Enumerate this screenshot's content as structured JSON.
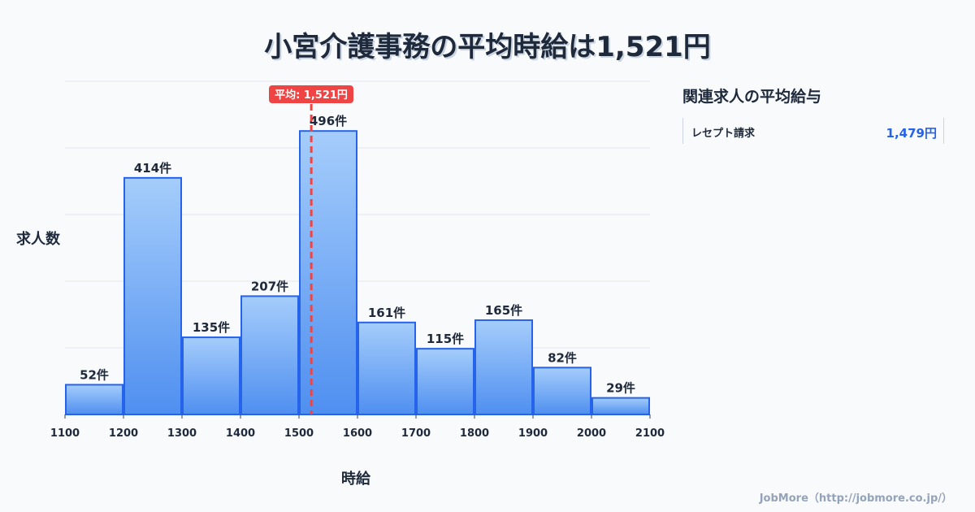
{
  "title": "小宮介護事務の平均時給は1,521円",
  "chart_data": {
    "type": "bar",
    "title": "小宮介護事務の平均時給は1,521円",
    "xlabel": "時給",
    "ylabel": "求人数",
    "bin_edges": [
      1100,
      1200,
      1300,
      1400,
      1500,
      1600,
      1700,
      1800,
      1900,
      2000,
      2100
    ],
    "values": [
      52,
      414,
      135,
      207,
      496,
      161,
      115,
      165,
      82,
      29
    ],
    "labels": [
      "52件",
      "414件",
      "135件",
      "207件",
      "496件",
      "161件",
      "115件",
      "165件",
      "82件",
      "29件"
    ],
    "xlim": [
      1100,
      2100
    ],
    "ylim": [
      0,
      583
    ],
    "mean": 1521,
    "mean_label": "平均: 1,521円",
    "colors": {
      "bar_top": "#a5cdfb",
      "bar_bottom": "#4f8ff0",
      "bar_stroke": "#2563eb",
      "mean": "#ef4444"
    }
  },
  "side": {
    "title": "関連求人の平均給与",
    "items": [
      {
        "name": "レセプト請求",
        "value": "1,479円"
      }
    ]
  },
  "credit": "JobMore（http://jobmore.co.jp/）"
}
